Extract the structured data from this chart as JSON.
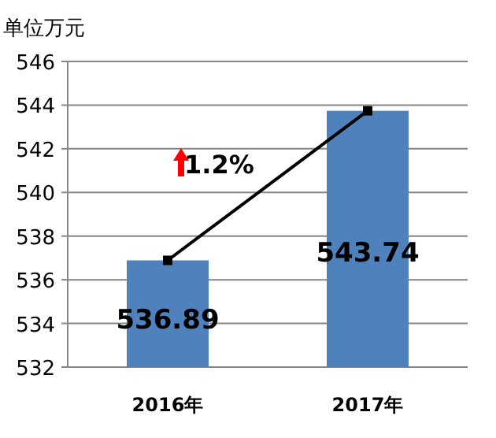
{
  "chart_data": {
    "type": "bar",
    "ylabel": "单位万元",
    "categories": [
      "2016年",
      "2017年"
    ],
    "series": [
      {
        "color": "#4f81bd",
        "values": [
          536.89,
          543.74
        ],
        "value_labels": [
          "536.89",
          "543.74"
        ]
      },
      {
        "type": "line",
        "color": "#000000",
        "values": [
          536.89,
          543.74
        ],
        "marker": "square"
      }
    ],
    "annotations": [
      "1.2%"
    ],
    "ylim": [
      532,
      546
    ],
    "yticks": [
      532,
      534,
      536,
      538,
      540,
      542,
      544,
      546
    ],
    "grid": "y"
  }
}
